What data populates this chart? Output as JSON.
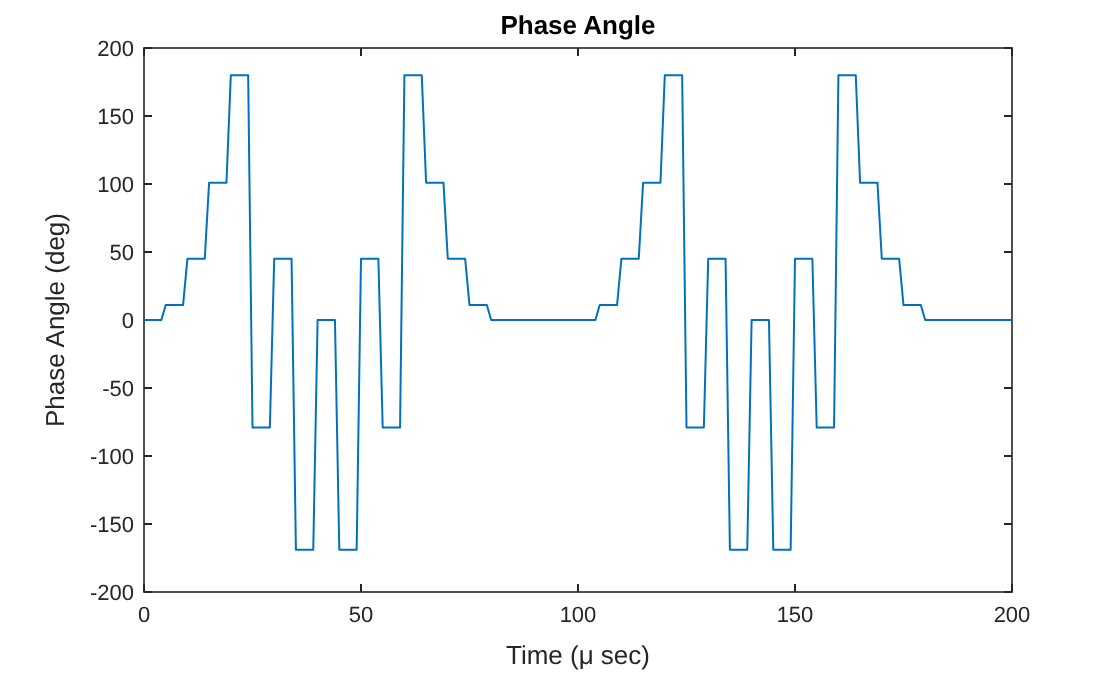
{
  "chart_data": {
    "type": "line",
    "title": "Phase Angle",
    "xlabel": "Time (μ sec)",
    "ylabel": "Phase Angle (deg)",
    "x": [
      0,
      4,
      5,
      9,
      10,
      14,
      15,
      19,
      20,
      24,
      25,
      29,
      30,
      34,
      35,
      39,
      40,
      44,
      45,
      49,
      50,
      54,
      55,
      59,
      60,
      64,
      65,
      69,
      70,
      74,
      75,
      79,
      80,
      104,
      105,
      109,
      110,
      114,
      115,
      119,
      120,
      124,
      125,
      129,
      130,
      134,
      135,
      139,
      140,
      144,
      145,
      149,
      150,
      154,
      155,
      159,
      160,
      164,
      165,
      169,
      170,
      174,
      175,
      179,
      180,
      200
    ],
    "series": [
      {
        "color": "#0072bd",
        "values": [
          0,
          0,
          11,
          11,
          45,
          45,
          101,
          101,
          180,
          180,
          -79,
          -79,
          45,
          45,
          -169,
          -169,
          0,
          0,
          -169,
          -169,
          45,
          45,
          -79,
          -79,
          180,
          180,
          101,
          101,
          45,
          45,
          11,
          11,
          0,
          0,
          11,
          11,
          45,
          45,
          101,
          101,
          180,
          180,
          -79,
          -79,
          45,
          45,
          -169,
          -169,
          0,
          0,
          -169,
          -169,
          45,
          45,
          -79,
          -79,
          180,
          180,
          101,
          101,
          45,
          45,
          11,
          11,
          0,
          0
        ]
      }
    ],
    "xlim": [
      0,
      200
    ],
    "xticks": [
      0,
      50,
      100,
      150,
      200
    ],
    "ylim": [
      -200,
      200
    ],
    "yticks": [
      -200,
      -150,
      -100,
      -50,
      0,
      50,
      100,
      150,
      200
    ],
    "grid": false,
    "marker": "none",
    "line_style": "solid"
  }
}
